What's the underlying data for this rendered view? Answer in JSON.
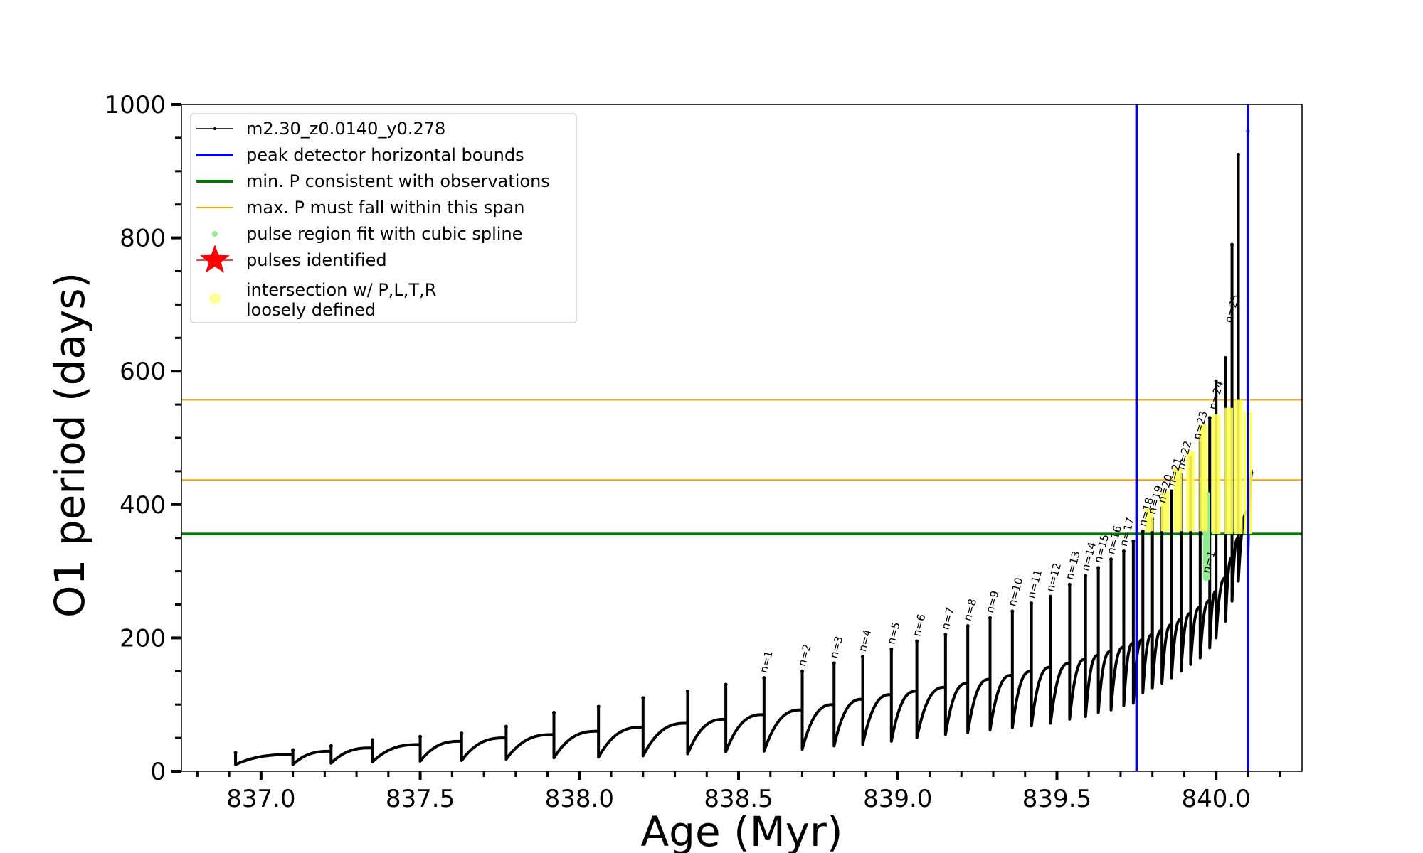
{
  "chart_data": {
    "type": "scatter",
    "xlabel": "Age (Myr)",
    "ylabel": "O1 period (days)",
    "xlim": [
      836.75,
      840.27
    ],
    "ylim": [
      0,
      1000
    ],
    "xticks": [
      "837.0",
      "837.5",
      "838.0",
      "838.5",
      "839.0",
      "839.5",
      "840.0"
    ],
    "xtick_values": [
      837.0,
      837.5,
      838.0,
      838.5,
      839.0,
      839.5,
      840.0
    ],
    "yticks": [
      "0",
      "200",
      "400",
      "600",
      "800",
      "1000"
    ],
    "ytick_values": [
      0,
      200,
      400,
      600,
      800,
      1000
    ],
    "legend_position": "top-left",
    "legend": [
      {
        "label": "m2.30_z0.0140_y0.278",
        "style": "line-dot",
        "color": "#000000"
      },
      {
        "label": "peak detector horizontal bounds",
        "style": "line",
        "color": "#0000ee"
      },
      {
        "label": "min. P consistent with observations",
        "style": "line",
        "color": "#007a00"
      },
      {
        "label": "max. P must fall within this span",
        "style": "thin-line",
        "color": "#ffa500"
      },
      {
        "label": "pulse region fit with cubic spline",
        "style": "dot",
        "color": "#90ee90"
      },
      {
        "label": "pulses identified",
        "style": "star",
        "color": "#ff0000"
      },
      {
        "label": "intersection w/ P,L,T,R\nloosely defined",
        "style": "dot",
        "color": "#ffff99"
      }
    ],
    "vertical_bounds": [
      839.75,
      840.1
    ],
    "min_period_line": 356,
    "max_period_span": [
      437,
      557
    ],
    "series": [
      {
        "name": "m2.30_z0.0140_y0.278",
        "color": "#000000",
        "start_age": 836.92,
        "cycles": [
          {
            "age": 836.92,
            "min": 10,
            "max": 25,
            "spike": 28
          },
          {
            "age": 837.1,
            "min": 10,
            "max": 30,
            "spike": 32
          },
          {
            "age": 837.22,
            "min": 12,
            "max": 35,
            "spike": 38
          },
          {
            "age": 837.35,
            "min": 14,
            "max": 40,
            "spike": 47
          },
          {
            "age": 837.5,
            "min": 15,
            "max": 45,
            "spike": 52
          },
          {
            "age": 837.63,
            "min": 16,
            "max": 50,
            "spike": 57
          },
          {
            "age": 837.77,
            "min": 18,
            "max": 55,
            "spike": 67
          },
          {
            "age": 837.92,
            "min": 20,
            "max": 60,
            "spike": 88
          },
          {
            "age": 838.06,
            "min": 21,
            "max": 66,
            "spike": 97
          },
          {
            "age": 838.2,
            "min": 23,
            "max": 72,
            "spike": 110
          },
          {
            "age": 838.34,
            "min": 26,
            "max": 78,
            "spike": 120
          },
          {
            "age": 838.46,
            "min": 29,
            "max": 85,
            "spike": 130
          },
          {
            "age": 838.58,
            "min": 30,
            "max": 92,
            "spike": 140
          },
          {
            "age": 838.7,
            "min": 33,
            "max": 100,
            "spike": 150
          },
          {
            "age": 838.8,
            "min": 38,
            "max": 108,
            "spike": 162
          },
          {
            "age": 838.89,
            "min": 40,
            "max": 115,
            "spike": 172
          },
          {
            "age": 838.98,
            "min": 45,
            "max": 120,
            "spike": 183
          },
          {
            "age": 839.06,
            "min": 50,
            "max": 126,
            "spike": 195
          },
          {
            "age": 839.15,
            "min": 55,
            "max": 132,
            "spike": 205
          },
          {
            "age": 839.22,
            "min": 58,
            "max": 138,
            "spike": 218
          },
          {
            "age": 839.29,
            "min": 62,
            "max": 144,
            "spike": 230
          },
          {
            "age": 839.36,
            "min": 65,
            "max": 150,
            "spike": 240
          },
          {
            "age": 839.42,
            "min": 68,
            "max": 156,
            "spike": 252
          },
          {
            "age": 839.48,
            "min": 72,
            "max": 162,
            "spike": 262
          },
          {
            "age": 839.54,
            "min": 78,
            "max": 168,
            "spike": 280
          },
          {
            "age": 839.59,
            "min": 82,
            "max": 174,
            "spike": 293
          },
          {
            "age": 839.63,
            "min": 88,
            "max": 180,
            "spike": 305
          },
          {
            "age": 839.67,
            "min": 92,
            "max": 186,
            "spike": 318
          },
          {
            "age": 839.71,
            "min": 98,
            "max": 192,
            "spike": 330
          },
          {
            "age": 839.74,
            "min": 102,
            "max": 198,
            "spike": 345
          },
          {
            "age": 839.77,
            "min": 118,
            "max": 205,
            "spike": 360
          },
          {
            "age": 839.8,
            "min": 125,
            "max": 212,
            "spike": 378
          },
          {
            "age": 839.83,
            "min": 132,
            "max": 220,
            "spike": 395
          },
          {
            "age": 839.86,
            "min": 140,
            "max": 228,
            "spike": 420
          },
          {
            "age": 839.89,
            "min": 150,
            "max": 237,
            "spike": 445
          },
          {
            "age": 839.92,
            "min": 160,
            "max": 246,
            "spike": 470
          },
          {
            "age": 839.95,
            "min": 170,
            "max": 256,
            "spike": 500
          },
          {
            "age": 839.98,
            "min": 185,
            "max": 270,
            "spike": 530
          },
          {
            "age": 840.0,
            "min": 200,
            "max": 290,
            "spike": 585
          },
          {
            "age": 840.03,
            "min": 225,
            "max": 320,
            "spike": 620
          },
          {
            "age": 840.05,
            "min": 255,
            "max": 350,
            "spike": 790
          },
          {
            "age": 840.07,
            "min": 285,
            "max": 390,
            "spike": 925
          },
          {
            "age": 840.1,
            "min": 325,
            "max": 450,
            "spike": 960
          }
        ]
      }
    ],
    "annotations": [
      {
        "text": "n=1",
        "x": 838.58,
        "y": 140
      },
      {
        "text": "n=2",
        "x": 838.7,
        "y": 150
      },
      {
        "text": "n=3",
        "x": 838.8,
        "y": 162
      },
      {
        "text": "n=4",
        "x": 838.89,
        "y": 172
      },
      {
        "text": "n=5",
        "x": 838.98,
        "y": 183
      },
      {
        "text": "n=6",
        "x": 839.06,
        "y": 195
      },
      {
        "text": "n=7",
        "x": 839.15,
        "y": 205
      },
      {
        "text": "n=8",
        "x": 839.22,
        "y": 218
      },
      {
        "text": "n=9",
        "x": 839.29,
        "y": 230
      },
      {
        "text": "n=10",
        "x": 839.36,
        "y": 240
      },
      {
        "text": "n=11",
        "x": 839.42,
        "y": 252
      },
      {
        "text": "n=12",
        "x": 839.48,
        "y": 262
      },
      {
        "text": "n=13",
        "x": 839.54,
        "y": 280
      },
      {
        "text": "n=14",
        "x": 839.59,
        "y": 293
      },
      {
        "text": "n=15",
        "x": 839.63,
        "y": 305
      },
      {
        "text": "n=16",
        "x": 839.67,
        "y": 318
      },
      {
        "text": "n=17",
        "x": 839.71,
        "y": 330
      },
      {
        "text": "n=18",
        "x": 839.77,
        "y": 360
      },
      {
        "text": "n=19",
        "x": 839.8,
        "y": 378
      },
      {
        "text": "n=20",
        "x": 839.83,
        "y": 395
      },
      {
        "text": "n=21",
        "x": 839.86,
        "y": 420
      },
      {
        "text": "n=22",
        "x": 839.89,
        "y": 445
      },
      {
        "text": "n=23",
        "x": 839.94,
        "y": 490
      },
      {
        "text": "n=24",
        "x": 839.99,
        "y": 535
      },
      {
        "text": "n=25",
        "x": 840.04,
        "y": 665
      },
      {
        "text": "n=1",
        "x": 839.97,
        "y": 290
      }
    ],
    "spline_regions": [
      {
        "age": 839.97,
        "from": 285,
        "to": 420
      }
    ],
    "intersection_regions": [
      {
        "age": 839.79,
        "from": 360,
        "to": 395
      },
      {
        "age": 839.84,
        "from": 360,
        "to": 420
      },
      {
        "age": 839.88,
        "from": 360,
        "to": 455
      },
      {
        "age": 839.92,
        "from": 360,
        "to": 480
      },
      {
        "age": 839.96,
        "from": 360,
        "to": 520
      },
      {
        "age": 840.0,
        "from": 356,
        "to": 535
      },
      {
        "age": 840.04,
        "from": 356,
        "to": 545
      },
      {
        "age": 840.07,
        "from": 356,
        "to": 557
      },
      {
        "age": 840.1,
        "from": 356,
        "to": 540
      }
    ]
  }
}
